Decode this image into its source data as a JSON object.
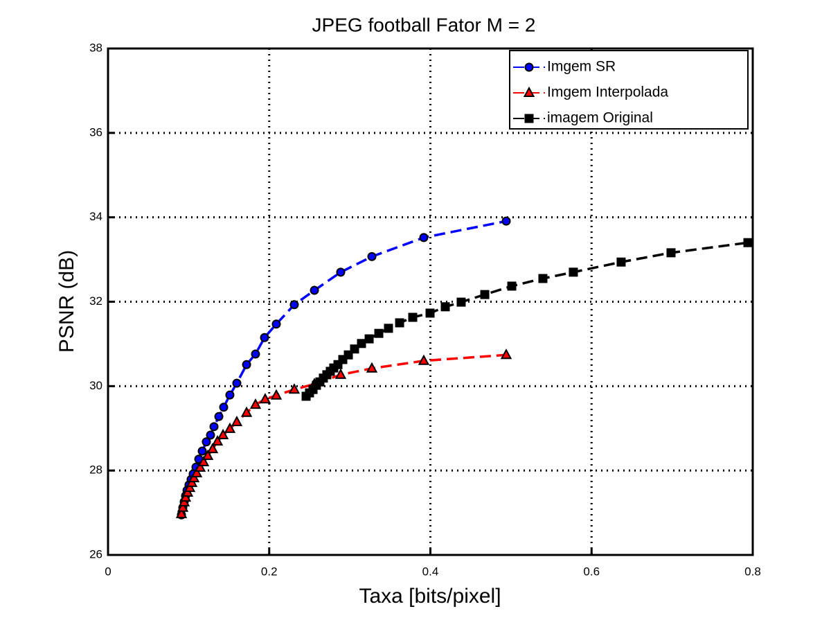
{
  "chart_data": {
    "type": "line",
    "title": "JPEG football Fator M = 2",
    "x_label": "Taxa [bits/pixel]",
    "y_label": "PSNR (dB)",
    "xlim": [
      0,
      0.8
    ],
    "xticks": [
      0,
      0.2,
      0.4,
      0.6,
      0.8
    ],
    "ylim": [
      26,
      38
    ],
    "yticks": [
      26,
      28,
      30,
      32,
      34,
      36,
      38
    ],
    "grid": true,
    "legend": "top-right",
    "series": [
      {
        "name": "Imgem SR",
        "color": "#0000ff",
        "marker": "circle",
        "x": [
          0.0911,
          0.0928,
          0.0945,
          0.0962,
          0.098,
          0.1005,
          0.1031,
          0.1057,
          0.1091,
          0.1126,
          0.1169,
          0.122,
          0.1272,
          0.1315,
          0.1375,
          0.1435,
          0.1512,
          0.1598,
          0.1719,
          0.183,
          0.1942,
          0.2088,
          0.2311,
          0.2561,
          0.2887,
          0.3274,
          0.3918,
          0.4941
        ],
        "values": [
          26.95,
          27.12,
          27.26,
          27.4,
          27.53,
          27.66,
          27.79,
          27.92,
          28.08,
          28.27,
          28.46,
          28.68,
          28.84,
          29.04,
          29.28,
          29.5,
          29.79,
          30.07,
          30.51,
          30.76,
          31.15,
          31.47,
          31.93,
          32.27,
          32.7,
          33.07,
          33.52,
          33.91
        ]
      },
      {
        "name": "Imgem Interpolada",
        "color": "#ff0000",
        "marker": "triangle",
        "x": [
          0.0911,
          0.0928,
          0.0945,
          0.0962,
          0.0988,
          0.1014,
          0.104,
          0.1066,
          0.11,
          0.1143,
          0.1186,
          0.1238,
          0.1298,
          0.1358,
          0.1427,
          0.1512,
          0.1598,
          0.1719,
          0.183,
          0.195,
          0.2088,
          0.2311,
          0.2561,
          0.2887,
          0.3274,
          0.3918,
          0.4941
        ],
        "values": [
          26.97,
          27.12,
          27.25,
          27.36,
          27.48,
          27.59,
          27.71,
          27.82,
          27.94,
          28.07,
          28.2,
          28.35,
          28.51,
          28.69,
          28.84,
          28.99,
          29.15,
          29.37,
          29.56,
          29.69,
          29.78,
          29.92,
          30.05,
          30.27,
          30.42,
          30.6,
          30.74
        ]
      },
      {
        "name": "imagem Original",
        "color": "#000000",
        "marker": "square",
        "x": [
          0.2458,
          0.25,
          0.2544,
          0.2586,
          0.2629,
          0.2672,
          0.2715,
          0.2758,
          0.2801,
          0.2853,
          0.2913,
          0.2982,
          0.3059,
          0.3145,
          0.324,
          0.336,
          0.348,
          0.3618,
          0.3781,
          0.3996,
          0.4185,
          0.4382,
          0.4675,
          0.501,
          0.5396,
          0.5774,
          0.6367,
          0.6986,
          0.794
        ],
        "values": [
          29.76,
          29.84,
          29.92,
          30.02,
          30.1,
          30.19,
          30.27,
          30.35,
          30.43,
          30.51,
          30.63,
          30.74,
          30.88,
          31.01,
          31.12,
          31.25,
          31.37,
          31.5,
          31.63,
          31.73,
          31.88,
          31.99,
          32.17,
          32.37,
          32.55,
          32.7,
          32.94,
          33.16,
          33.4
        ]
      }
    ]
  }
}
